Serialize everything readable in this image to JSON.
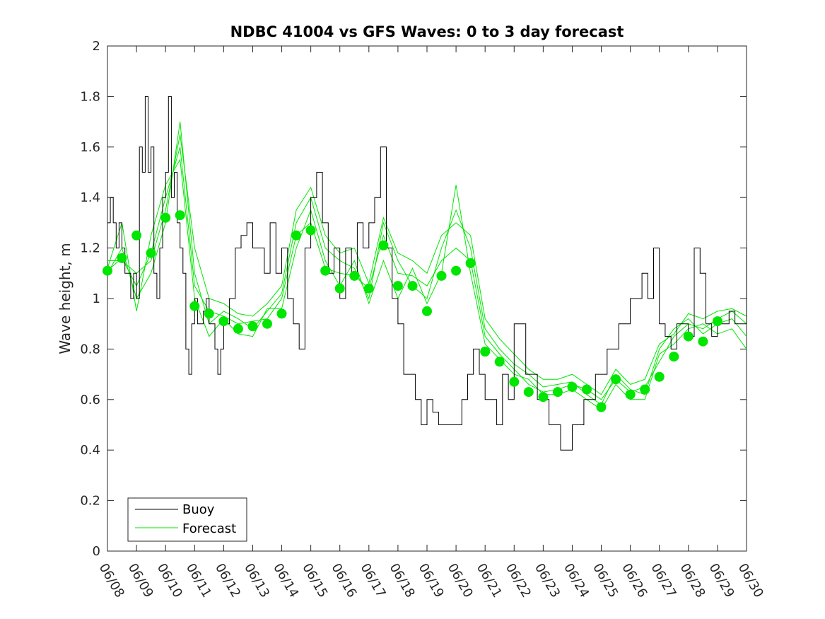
{
  "chart_data": {
    "type": "line",
    "title": "NDBC 41004 vs GFS Waves: 0 to 3 day forecast",
    "xlabel": "",
    "ylabel": "Wave height, m",
    "ylim": [
      0,
      2
    ],
    "xlim": [
      "06/08",
      "06/30"
    ],
    "yticks": [
      "0",
      "0.2",
      "0.4",
      "0.6",
      "0.8",
      "1",
      "1.2",
      "1.4",
      "1.6",
      "1.8",
      "2"
    ],
    "xticks": [
      "06/08",
      "06/09",
      "06/10",
      "06/11",
      "06/12",
      "06/13",
      "06/14",
      "06/15",
      "06/16",
      "06/17",
      "06/18",
      "06/19",
      "06/20",
      "06/21",
      "06/22",
      "06/23",
      "06/24",
      "06/25",
      "06/26",
      "06/27",
      "06/28",
      "06/29",
      "06/30"
    ],
    "grid": false,
    "legend": {
      "placement": "bottom-left",
      "entries": [
        "Buoy",
        "Forecast"
      ]
    },
    "colors": {
      "buoy": "#000000",
      "forecast": "#00e600",
      "axes": "#262626"
    },
    "buoy_day_x": [
      0,
      0.1,
      0.2,
      0.3,
      0.4,
      0.5,
      0.6,
      0.7,
      0.8,
      0.9,
      1.0,
      1.1,
      1.2,
      1.3,
      1.4,
      1.5,
      1.6,
      1.7,
      1.8,
      1.9,
      2.0,
      2.1,
      2.2,
      2.3,
      2.4,
      2.5,
      2.6,
      2.7,
      2.8,
      2.9,
      3.0,
      3.1,
      3.2,
      3.3,
      3.4,
      3.5,
      3.6,
      3.7,
      3.8,
      3.9,
      4.0,
      4.2,
      4.4,
      4.6,
      4.8,
      5.0,
      5.2,
      5.4,
      5.6,
      5.8,
      6.0,
      6.2,
      6.4,
      6.6,
      6.8,
      7.0,
      7.2,
      7.4,
      7.6,
      7.8,
      8.0,
      8.2,
      8.4,
      8.6,
      8.8,
      9.0,
      9.2,
      9.4,
      9.6,
      9.8,
      10.0,
      10.2,
      10.4,
      10.6,
      10.8,
      11.0,
      11.2,
      11.4,
      11.6,
      11.8,
      12.0,
      12.2,
      12.4,
      12.6,
      12.8,
      13.0,
      13.2,
      13.4,
      13.6,
      13.8,
      14.0,
      14.4,
      14.8,
      15.2,
      15.6,
      16.0,
      16.4,
      16.8,
      17.2,
      17.6,
      18.0,
      18.4,
      18.6,
      18.8,
      19.0,
      19.2,
      19.4,
      19.6,
      19.8,
      20.0,
      20.2,
      20.4,
      20.6,
      20.8,
      21.0,
      21.2,
      21.4,
      21.6,
      21.8,
      22.0
    ],
    "buoy_values": [
      1.3,
      1.4,
      1.3,
      1.2,
      1.3,
      1.2,
      1.1,
      1.1,
      1.0,
      1.1,
      1.0,
      1.6,
      1.5,
      1.8,
      1.5,
      1.6,
      1.1,
      1.0,
      1.2,
      1.4,
      1.5,
      1.8,
      1.4,
      1.5,
      1.3,
      1.2,
      1.1,
      0.8,
      0.7,
      0.9,
      1.0,
      0.9,
      0.9,
      0.95,
      1.0,
      0.9,
      0.9,
      0.8,
      0.7,
      0.8,
      0.9,
      1.0,
      1.2,
      1.25,
      1.3,
      1.2,
      1.2,
      1.1,
      1.3,
      1.1,
      1.2,
      1.0,
      0.9,
      0.8,
      1.2,
      1.4,
      1.5,
      1.3,
      1.1,
      1.2,
      1.0,
      1.2,
      1.1,
      1.3,
      1.2,
      1.3,
      1.4,
      1.6,
      1.2,
      1.0,
      0.9,
      0.7,
      0.7,
      0.6,
      0.5,
      0.6,
      0.55,
      0.5,
      0.5,
      0.5,
      0.5,
      0.6,
      0.7,
      0.8,
      0.7,
      0.6,
      0.6,
      0.5,
      0.7,
      0.6,
      0.9,
      0.7,
      0.6,
      0.5,
      0.4,
      0.5,
      0.6,
      0.7,
      0.8,
      0.9,
      1.0,
      1.1,
      1.0,
      1.2,
      0.9,
      0.85,
      0.8,
      0.9,
      0.9,
      0.85,
      1.2,
      1.1,
      0.9,
      0.85,
      0.9,
      0.9,
      0.95,
      0.9,
      0.9,
      1.2
    ],
    "forecast_point_x": [
      0,
      0.5,
      1.0,
      1.5,
      2.0,
      2.5,
      3.0,
      3.5,
      4.0,
      4.5,
      5.0,
      5.5,
      6.0,
      6.5,
      7.0,
      7.5,
      8.0,
      8.5,
      9.0,
      9.5,
      10.0,
      10.5,
      11.0,
      11.5,
      12.0,
      12.5,
      13.0,
      13.5,
      14.0,
      14.5,
      15.0,
      15.5,
      16.0,
      16.5,
      17.0,
      17.5,
      18.0,
      18.5,
      19.0,
      19.5,
      20.0,
      20.5,
      21.0
    ],
    "forecast_points": [
      1.11,
      1.16,
      1.25,
      1.18,
      1.32,
      1.33,
      0.97,
      0.94,
      0.91,
      0.88,
      0.89,
      0.9,
      0.94,
      1.25,
      1.27,
      1.11,
      1.04,
      1.09,
      1.04,
      1.21,
      1.05,
      1.05,
      0.95,
      1.09,
      1.11,
      1.14,
      0.79,
      0.75,
      0.67,
      0.63,
      0.61,
      0.63,
      0.65,
      0.64,
      0.57,
      0.68,
      0.62,
      0.64,
      0.69,
      0.77,
      0.85,
      0.83,
      0.91
    ],
    "forecast_runs": [
      {
        "x": [
          0,
          0.5,
          1.0,
          1.5,
          2.0,
          2.5,
          3.0,
          3.5,
          4.0,
          4.5,
          5.0,
          5.5,
          6.0,
          6.5,
          7.0,
          7.5,
          8.0,
          8.5,
          9.0,
          9.5,
          10.0,
          10.5,
          11.0,
          11.5,
          12.0,
          12.5,
          13.0,
          13.5,
          14.0,
          14.5,
          15.0,
          15.5,
          16.0,
          16.5,
          17.0,
          17.5,
          18.0,
          18.5,
          19.0,
          19.5,
          20.0,
          20.5,
          21.0,
          21.5,
          22.0
        ],
        "y": [
          1.11,
          1.16,
          1.05,
          1.18,
          1.4,
          1.6,
          1.05,
          0.95,
          0.93,
          0.9,
          0.91,
          0.92,
          1.0,
          1.25,
          1.3,
          1.12,
          1.1,
          1.09,
          1.04,
          1.25,
          1.1,
          1.09,
          1.05,
          1.15,
          1.2,
          1.15,
          0.85,
          0.78,
          0.72,
          0.66,
          0.63,
          0.64,
          0.66,
          0.64,
          0.6,
          0.68,
          0.63,
          0.65,
          0.75,
          0.85,
          0.9,
          0.88,
          0.92,
          0.95,
          0.9
        ]
      },
      {
        "x": [
          0,
          0.5,
          1.0,
          1.5,
          2.0,
          2.5,
          3.0,
          3.5,
          4.0,
          4.5,
          5.0,
          5.5,
          6.0,
          6.5,
          7.0,
          7.5,
          8.0,
          8.5,
          9.0,
          9.5,
          10.0,
          10.5,
          11.0,
          11.5,
          12.0,
          12.5,
          13.0,
          13.5,
          14.0,
          14.5,
          15.0,
          15.5,
          16.0,
          16.5,
          17.0,
          17.5,
          18.0,
          18.5,
          19.0,
          19.5,
          20.0,
          20.5,
          21.0,
          21.5,
          22.0
        ],
        "y": [
          1.1,
          1.2,
          1.0,
          1.1,
          1.3,
          1.7,
          1.1,
          0.9,
          0.95,
          0.92,
          0.88,
          0.95,
          1.02,
          1.3,
          1.4,
          1.2,
          1.15,
          1.12,
          1.0,
          1.3,
          1.15,
          1.05,
          1.0,
          1.2,
          1.35,
          1.2,
          0.88,
          0.8,
          0.74,
          0.7,
          0.65,
          0.66,
          0.67,
          0.62,
          0.58,
          0.7,
          0.64,
          0.62,
          0.8,
          0.88,
          0.92,
          0.86,
          0.9,
          0.92,
          0.85
        ]
      },
      {
        "x": [
          0,
          0.5,
          1.0,
          1.5,
          2.0,
          2.5,
          3.0,
          3.5,
          4.0,
          4.5,
          5.0,
          5.5,
          6.0,
          6.5,
          7.0,
          7.5,
          8.0,
          8.5,
          9.0,
          9.5,
          10.0,
          10.5,
          11.0,
          11.5,
          12.0,
          12.5,
          13.0,
          13.5,
          14.0,
          14.5,
          15.0,
          15.5,
          16.0,
          16.5,
          17.0,
          17.5,
          18.0,
          18.5,
          19.0,
          19.5,
          20.0,
          20.5,
          21.0,
          21.5,
          22.0
        ],
        "y": [
          1.12,
          1.3,
          0.95,
          1.25,
          1.45,
          1.55,
          1.0,
          0.85,
          0.92,
          0.86,
          0.85,
          0.96,
          0.96,
          1.2,
          1.35,
          1.15,
          1.05,
          1.15,
          0.98,
          1.15,
          1.0,
          1.12,
          0.98,
          1.1,
          1.45,
          1.1,
          0.82,
          0.76,
          0.7,
          0.68,
          0.62,
          0.62,
          0.64,
          0.6,
          0.56,
          0.66,
          0.6,
          0.6,
          0.78,
          0.82,
          0.88,
          0.9,
          0.86,
          0.88,
          0.8
        ]
      },
      {
        "x": [
          0,
          0.5,
          1.0,
          1.5,
          2.0,
          2.5,
          3.0,
          3.5,
          4.0,
          4.5,
          5.0,
          5.5,
          6.0,
          6.5,
          7.0,
          7.5,
          8.0,
          8.5,
          9.0,
          9.5,
          10.0,
          10.5,
          11.0,
          11.5,
          12.0,
          12.5,
          13.0,
          13.5,
          14.0,
          14.5,
          15.0,
          15.5,
          16.0,
          16.5,
          17.0,
          17.5,
          18.0,
          18.5,
          19.0,
          19.5,
          20.0,
          20.5,
          21.0,
          21.5,
          22.0
        ],
        "y": [
          1.15,
          1.15,
          1.1,
          1.15,
          1.35,
          1.65,
          1.2,
          1.0,
          0.98,
          0.94,
          0.93,
          0.98,
          1.05,
          1.35,
          1.44,
          1.25,
          1.18,
          1.2,
          1.06,
          1.32,
          1.18,
          1.15,
          1.1,
          1.25,
          1.3,
          1.25,
          0.92,
          0.84,
          0.78,
          0.72,
          0.68,
          0.68,
          0.7,
          0.66,
          0.62,
          0.72,
          0.66,
          0.68,
          0.82,
          0.86,
          0.94,
          0.92,
          0.95,
          0.96,
          0.93
        ]
      }
    ]
  }
}
